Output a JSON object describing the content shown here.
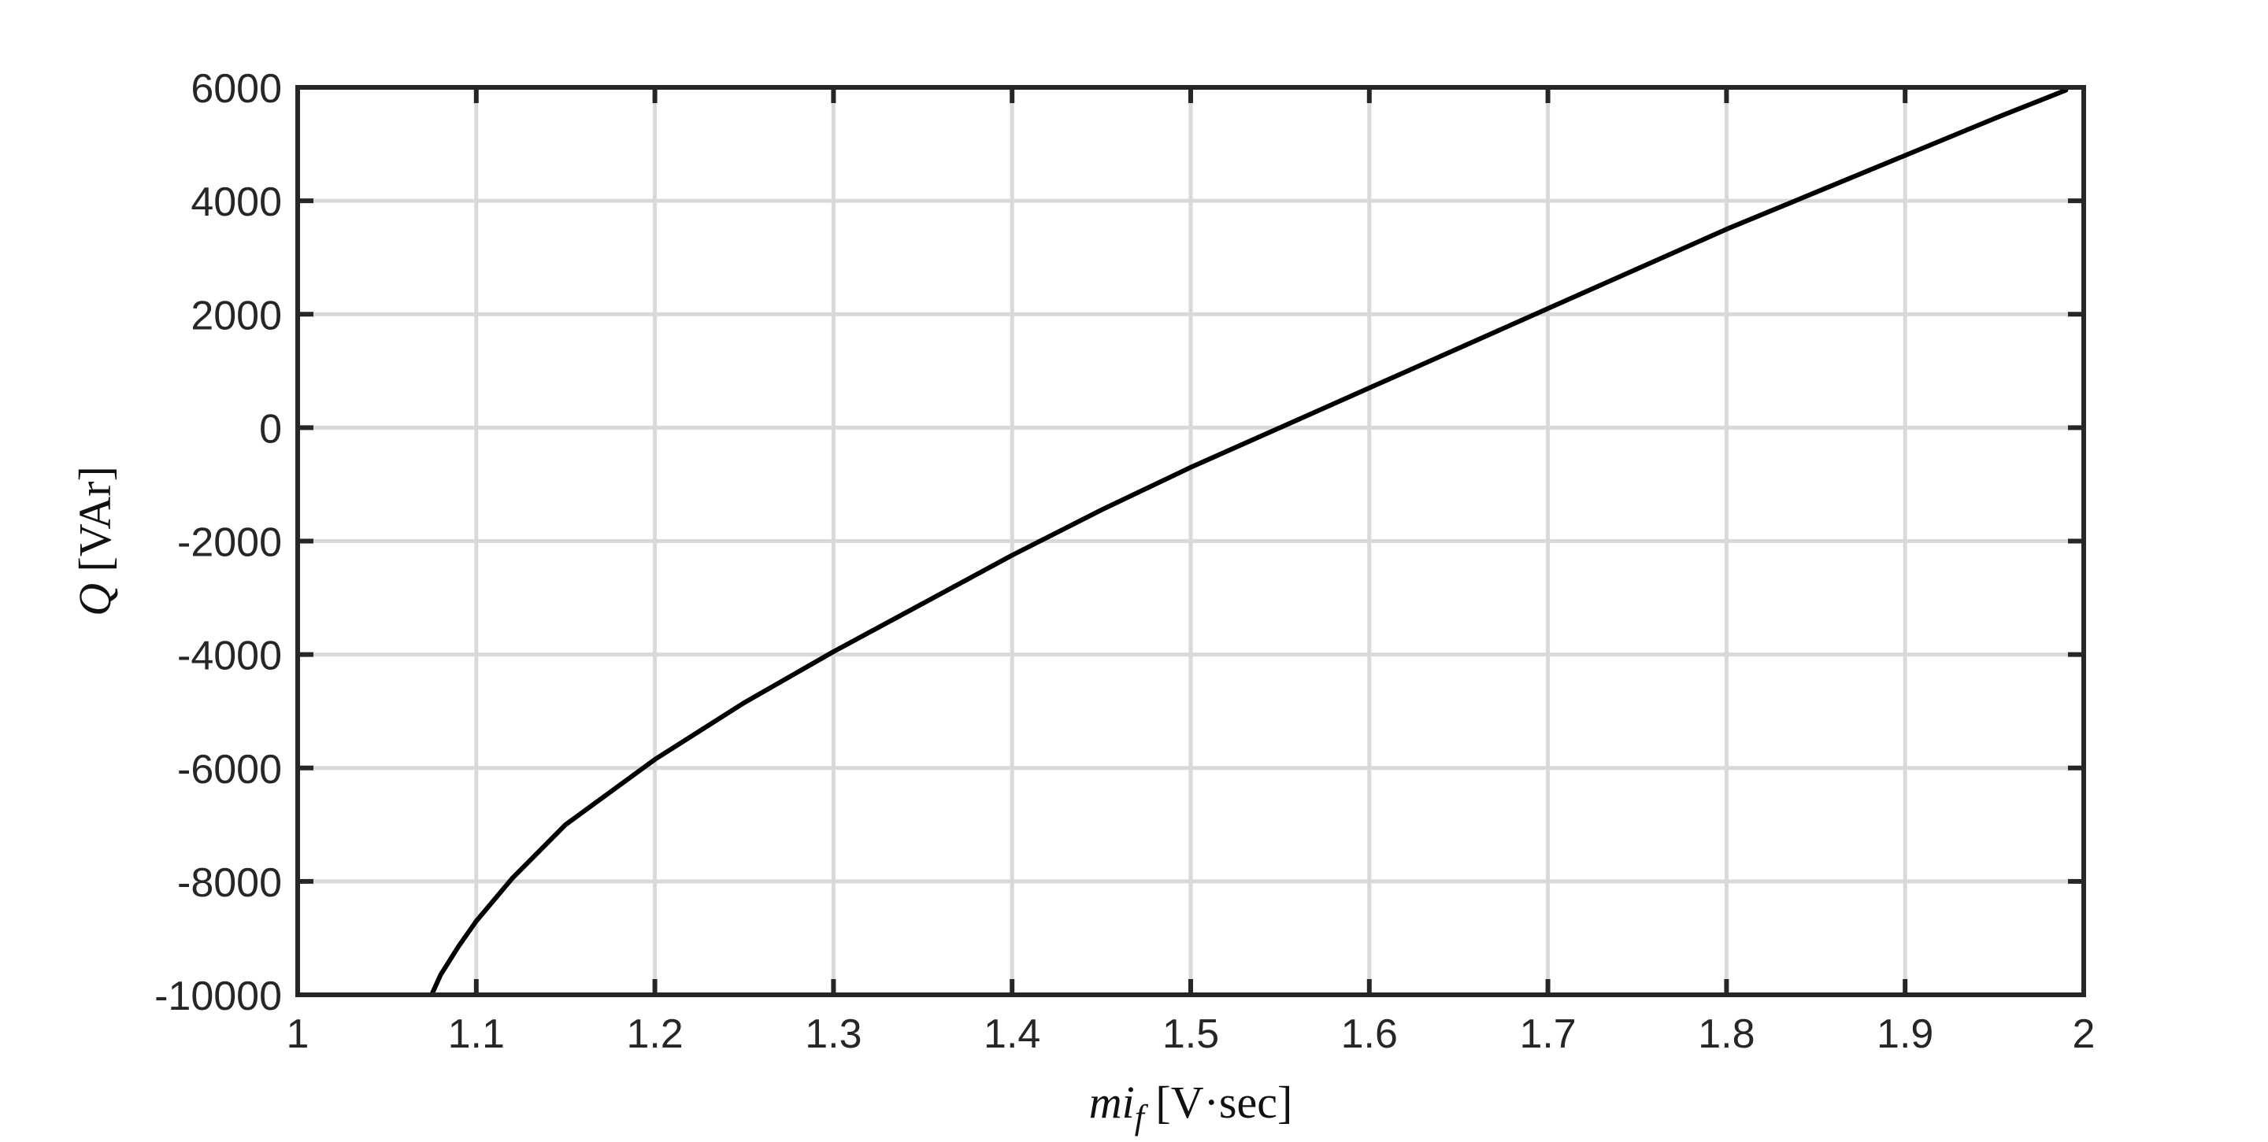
{
  "chart_data": {
    "type": "line",
    "title": "",
    "xlabel": {
      "var": "mi",
      "sub": "f",
      "unit": " [V·sec]"
    },
    "ylabel": {
      "var": "Q",
      "unit": " [VAr]"
    },
    "xlim": [
      1,
      2
    ],
    "ylim": [
      -10000,
      6000
    ],
    "xticks": [
      1,
      1.1,
      1.2,
      1.3,
      1.4,
      1.5,
      1.6,
      1.7,
      1.8,
      1.9,
      2
    ],
    "xtick_labels": [
      "1",
      "1.1",
      "1.2",
      "1.3",
      "1.4",
      "1.5",
      "1.6",
      "1.7",
      "1.8",
      "1.9",
      "2"
    ],
    "yticks": [
      6000,
      4000,
      2000,
      0,
      -2000,
      -4000,
      -6000,
      -8000,
      -10000
    ],
    "ytick_labels": [
      "6000",
      "4000",
      "2000",
      "0",
      "-2000",
      "-4000",
      "-6000",
      "-8000",
      "-10000"
    ],
    "grid": true,
    "legend": "none",
    "colors": {
      "line": "#000000",
      "grid": "#d9d9d9",
      "axes": "#262626"
    },
    "series": [
      {
        "x": [
          1.075,
          1.08,
          1.09,
          1.1,
          1.12,
          1.15,
          1.2,
          1.25,
          1.3,
          1.35,
          1.4,
          1.45,
          1.5,
          1.55,
          1.6,
          1.65,
          1.7,
          1.75,
          1.8,
          1.85,
          1.9,
          1.95,
          1.99
        ],
        "y": [
          -10000,
          -9650,
          -9150,
          -8700,
          -7950,
          -7000,
          -5850,
          -4850,
          -3950,
          -3100,
          -2250,
          -1450,
          -700,
          0,
          700,
          1400,
          2100,
          2800,
          3500,
          4150,
          4800,
          5450,
          5950
        ]
      }
    ]
  }
}
